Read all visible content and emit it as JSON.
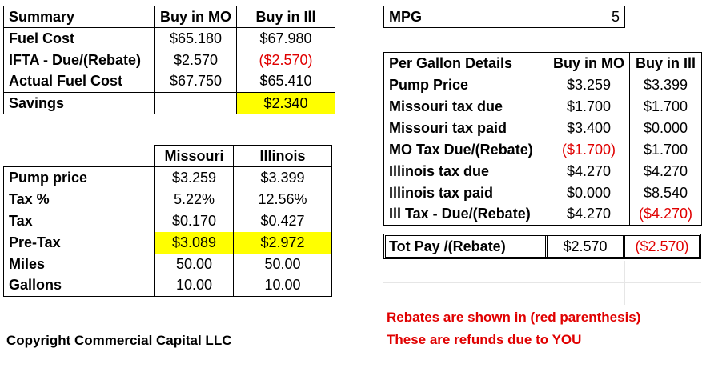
{
  "summary": {
    "headers": [
      "Summary",
      "Buy in MO",
      "Buy in Ill"
    ],
    "rows": [
      {
        "label": "Fuel Cost",
        "mo": "$65.180",
        "ill": "$67.980"
      },
      {
        "label": "IFTA - Due/(Rebate)",
        "mo": "$2.570",
        "ill": "($2.570)"
      },
      {
        "label": "Actual Fuel Cost",
        "mo": "$67.750",
        "ill": "$65.410"
      }
    ],
    "savings": {
      "label": "Savings",
      "mo": "",
      "ill": "$2.340"
    }
  },
  "state_table": {
    "headers": [
      "",
      "Missouri",
      "Illinois"
    ],
    "rows": [
      {
        "label": "Pump price",
        "mo": "$3.259",
        "ill": "$3.399"
      },
      {
        "label": "Tax %",
        "mo": "5.22%",
        "ill": "12.56%"
      },
      {
        "label": "Tax",
        "mo": "$0.170",
        "ill": "$0.427"
      },
      {
        "label": "Pre-Tax",
        "mo": "$3.089",
        "ill": "$2.972"
      },
      {
        "label": "Miles",
        "mo": "50.00",
        "ill": "50.00"
      },
      {
        "label": "Gallons",
        "mo": "10.00",
        "ill": "10.00"
      }
    ]
  },
  "mpg": {
    "label": "MPG",
    "value": "5"
  },
  "per_gallon": {
    "headers": [
      "Per Gallon Details",
      "Buy in MO",
      "Buy in Ill"
    ],
    "rows": [
      {
        "label": "Pump Price",
        "mo": "$3.259",
        "ill": "$3.399"
      },
      {
        "label": "Missouri tax due",
        "mo": "$1.700",
        "ill": "$1.700"
      },
      {
        "label": "Missouri tax paid",
        "mo": "$3.400",
        "ill": "$0.000"
      },
      {
        "label": "MO Tax Due/(Rebate)",
        "mo": "($1.700)",
        "ill": "$1.700"
      },
      {
        "label": "Illinois tax due",
        "mo": "$4.270",
        "ill": "$4.270"
      },
      {
        "label": "Illinois tax paid",
        "mo": "$0.000",
        "ill": "$8.540"
      },
      {
        "label": "Ill Tax - Due/(Rebate)",
        "mo": "$4.270",
        "ill": "($4.270)"
      }
    ],
    "total": {
      "label": "Tot Pay /(Rebate)",
      "mo": "$2.570",
      "ill": "($2.570)"
    }
  },
  "notes": {
    "line1": "Rebates are shown in (red parenthesis)",
    "line2": "These are refunds due to YOU"
  },
  "copyright": "Copyright Commercial Capital LLC",
  "colors": {
    "highlight": "#ffff00",
    "rebate_text": "#e00000"
  }
}
